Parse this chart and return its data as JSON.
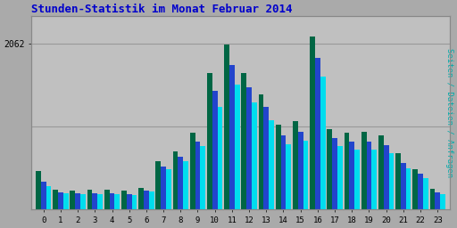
{
  "title": "Stunden-Statistik im Monat Februar 2014",
  "title_color": "#0000cc",
  "ylabel": "Seiten / Dateien / Anfragen",
  "ylabel_color": "#00aaaa",
  "ytick_label": "2062",
  "background_color": "#aaaaaa",
  "plot_bg_color": "#c0c0c0",
  "hours": [
    0,
    1,
    2,
    3,
    4,
    5,
    6,
    7,
    8,
    9,
    10,
    11,
    12,
    13,
    14,
    15,
    16,
    17,
    18,
    19,
    20,
    21,
    22,
    23
  ],
  "seiten": [
    480,
    250,
    240,
    245,
    245,
    230,
    265,
    600,
    720,
    950,
    1700,
    2050,
    1700,
    1430,
    1050,
    1100,
    2150,
    1000,
    950,
    960,
    920,
    700,
    500,
    260
  ],
  "dateien": [
    340,
    215,
    200,
    205,
    200,
    190,
    240,
    530,
    650,
    840,
    1470,
    1790,
    1520,
    1270,
    920,
    970,
    1880,
    890,
    845,
    840,
    800,
    580,
    450,
    215
  ],
  "anfragen": [
    290,
    205,
    190,
    190,
    185,
    180,
    225,
    500,
    600,
    790,
    1280,
    1550,
    1330,
    1110,
    810,
    850,
    1650,
    785,
    745,
    740,
    700,
    510,
    395,
    190
  ],
  "color_seiten": "#006644",
  "color_dateien": "#2244cc",
  "color_anfragen": "#00ddee",
  "bar_width": 0.3,
  "ylim": [
    0,
    2400
  ],
  "ytick_val": 2062,
  "figsize": [
    5.12,
    2.56
  ],
  "dpi": 100,
  "grid_color": "#999999",
  "spine_color": "#888888",
  "outer_bg": "#aaaaaa"
}
